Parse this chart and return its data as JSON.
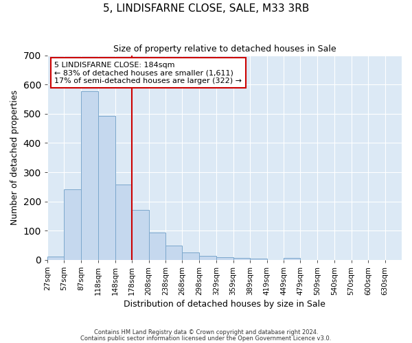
{
  "title": "5, LINDISFARNE CLOSE, SALE, M33 3RB",
  "subtitle": "Size of property relative to detached houses in Sale",
  "xlabel": "Distribution of detached houses by size in Sale",
  "ylabel": "Number of detached properties",
  "bar_color": "#c5d8ee",
  "bar_edge_color": "#7ba7cc",
  "background_color": "#dce9f5",
  "grid_color": "white",
  "annotation_text": "5 LINDISFARNE CLOSE: 184sqm\n← 83% of detached houses are smaller (1,611)\n17% of semi-detached houses are larger (322) →",
  "annotation_box_color": "white",
  "annotation_box_edge_color": "#cc0000",
  "vline_x": 178,
  "vline_color": "#cc0000",
  "categories": [
    "27sqm",
    "57sqm",
    "87sqm",
    "118sqm",
    "148sqm",
    "178sqm",
    "208sqm",
    "238sqm",
    "268sqm",
    "298sqm",
    "329sqm",
    "359sqm",
    "389sqm",
    "419sqm",
    "449sqm",
    "479sqm",
    "509sqm",
    "540sqm",
    "570sqm",
    "600sqm",
    "630sqm"
  ],
  "bin_edges": [
    27,
    57,
    87,
    118,
    148,
    178,
    208,
    238,
    268,
    298,
    329,
    359,
    389,
    419,
    449,
    479,
    509,
    540,
    570,
    600,
    630,
    660
  ],
  "values": [
    12,
    242,
    578,
    493,
    259,
    170,
    93,
    49,
    26,
    13,
    10,
    7,
    5,
    0,
    7,
    0,
    0,
    0,
    0,
    0,
    0
  ],
  "ylim": [
    0,
    700
  ],
  "yticks": [
    0,
    100,
    200,
    300,
    400,
    500,
    600,
    700
  ],
  "footer_line1": "Contains HM Land Registry data © Crown copyright and database right 2024.",
  "footer_line2": "Contains public sector information licensed under the Open Government Licence v3.0."
}
